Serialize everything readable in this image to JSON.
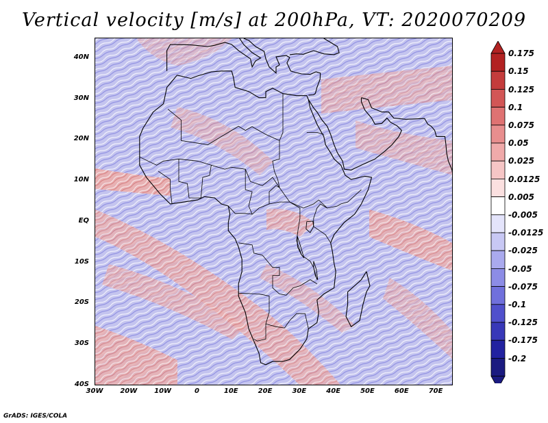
{
  "title": "Vertical velocity [m/s] at 200hPa, VT: 2020070209",
  "credit": "GrADS: IGES/COLA",
  "lat_ticks": [
    "40N",
    "30N",
    "20N",
    "10N",
    "EQ",
    "10S",
    "20S",
    "30S",
    "40S"
  ],
  "lon_ticks": [
    "30W",
    "20W",
    "10W",
    "0",
    "10E",
    "20E",
    "30E",
    "40E",
    "50E",
    "60E",
    "70E"
  ],
  "colorbar": {
    "labels": [
      "0.175",
      "0.15",
      "0.125",
      "0.1",
      "0.075",
      "0.05",
      "0.025",
      "0.0125",
      "0.005",
      "-0.005",
      "-0.0125",
      "-0.025",
      "-0.05",
      "-0.075",
      "-0.1",
      "-0.125",
      "-0.175",
      "-0.2"
    ],
    "colors": [
      "#b22222",
      "#c43c3c",
      "#d25656",
      "#df7272",
      "#e88e8e",
      "#f0aaaa",
      "#f6c6c6",
      "#fbe0e0",
      "#ffffff",
      "#e4e4fb",
      "#c8c8f4",
      "#aaaaee",
      "#8c8ce6",
      "#7070dc",
      "#5050cc",
      "#3838b8",
      "#2222a0",
      "#1a1a80"
    ]
  },
  "map": {
    "extent": {
      "lon": [
        -30,
        75
      ],
      "lat": [
        -40,
        45
      ]
    },
    "background": "#c9c9f0",
    "positive_color": "#e8a0a0",
    "negative_color": "#8a8ae0"
  }
}
